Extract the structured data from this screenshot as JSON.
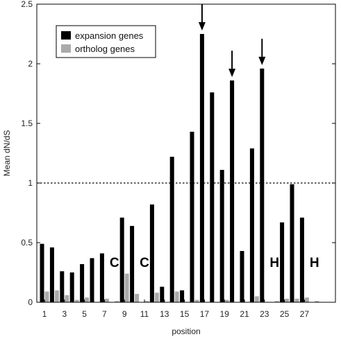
{
  "chart_data": {
    "type": "bar",
    "xlabel": "position",
    "ylabel": "Mean dN/dS",
    "ylim": [
      0,
      2.5
    ],
    "yticks": [
      "0",
      "0.5",
      "1",
      "1.5",
      "2",
      "2.5"
    ],
    "xtick_labels": [
      "1",
      "3",
      "5",
      "7",
      "9",
      "11",
      "13",
      "15",
      "17",
      "19",
      "21",
      "23",
      "25",
      "27"
    ],
    "xticks": [
      1,
      3,
      5,
      7,
      9,
      11,
      13,
      15,
      17,
      19,
      21,
      23,
      25,
      27
    ],
    "categories": [
      1,
      2,
      3,
      4,
      5,
      6,
      7,
      8,
      9,
      10,
      11,
      12,
      13,
      14,
      15,
      16,
      17,
      18,
      19,
      20,
      21,
      22,
      23,
      24,
      25,
      26,
      27,
      28
    ],
    "series": [
      {
        "name": "expansion genes",
        "color": "#000000",
        "values": [
          0.49,
          0.46,
          0.26,
          0.25,
          0.32,
          0.37,
          0.41,
          0.0,
          0.71,
          0.64,
          0.0,
          0.82,
          0.13,
          1.22,
          0.1,
          1.43,
          2.25,
          1.76,
          1.11,
          1.86,
          0.43,
          1.29,
          1.96,
          0.0,
          0.67,
          0.99,
          0.71,
          0.0
        ]
      },
      {
        "name": "ortholog genes",
        "color": "#aaaaaa",
        "values": [
          0.09,
          0.1,
          0.06,
          0.02,
          0.04,
          0.0,
          0.03,
          0.01,
          0.24,
          0.07,
          0.01,
          0.08,
          0.0,
          0.09,
          0.0,
          0.02,
          0.0,
          0.0,
          0.02,
          0.0,
          0.0,
          0.05,
          0.0,
          0.01,
          0.03,
          0.03,
          0.04,
          0.01
        ]
      }
    ],
    "reference_line": {
      "y": 1.0,
      "style": "dotted"
    },
    "arrows_at_positions": [
      17,
      20,
      23
    ],
    "position_letters": [
      {
        "position": 8,
        "text": "C"
      },
      {
        "position": 11,
        "text": "C"
      },
      {
        "position": 24,
        "text": "H"
      },
      {
        "position": 28,
        "text": "H"
      }
    ],
    "legend": {
      "placement": "top-left",
      "items": [
        {
          "label": "expansion genes",
          "color": "#000000"
        },
        {
          "label": "ortholog genes",
          "color": "#aaaaaa"
        }
      ]
    },
    "grid": false
  }
}
